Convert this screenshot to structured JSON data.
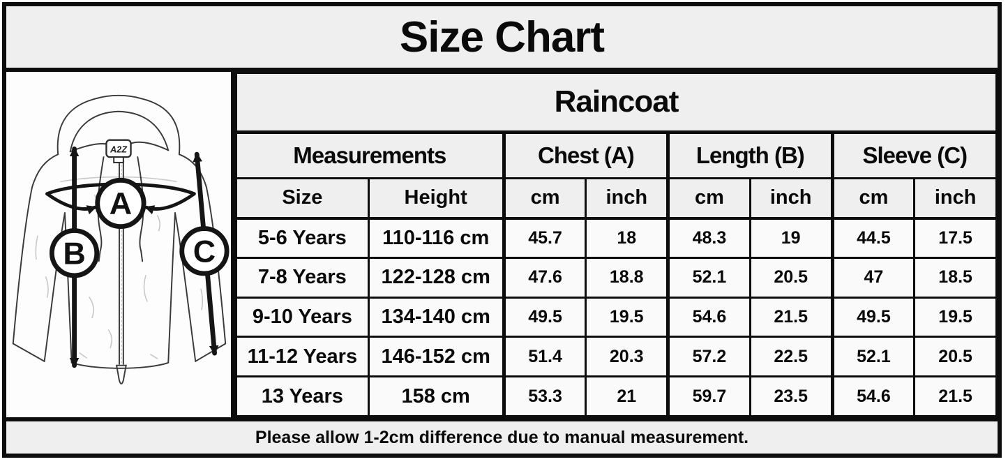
{
  "title": "Size Chart",
  "product": "Raincoat",
  "footer": "Please allow 1-2cm difference due to manual measurement.",
  "diagram": {
    "brand_tag": "A2Z",
    "markers": [
      {
        "id": "A",
        "measures": "chest"
      },
      {
        "id": "B",
        "measures": "length"
      },
      {
        "id": "C",
        "measures": "sleeve"
      }
    ]
  },
  "table": {
    "group_headers": [
      {
        "label": "Measurements",
        "span": 2
      },
      {
        "label": "Chest (A)",
        "span": 2
      },
      {
        "label": "Length (B)",
        "span": 2
      },
      {
        "label": "Sleeve (C)",
        "span": 2
      }
    ],
    "sub_headers": [
      "Size",
      "Height",
      "cm",
      "inch",
      "cm",
      "inch",
      "cm",
      "inch"
    ],
    "rows": [
      [
        "5-6 Years",
        "110-116 cm",
        "45.7",
        "18",
        "48.3",
        "19",
        "44.5",
        "17.5"
      ],
      [
        "7-8 Years",
        "122-128 cm",
        "47.6",
        "18.8",
        "52.1",
        "20.5",
        "47",
        "18.5"
      ],
      [
        "9-10 Years",
        "134-140 cm",
        "49.5",
        "19.5",
        "54.6",
        "21.5",
        "49.5",
        "19.5"
      ],
      [
        "11-12 Years",
        "146-152 cm",
        "51.4",
        "20.3",
        "57.2",
        "22.5",
        "52.1",
        "20.5"
      ],
      [
        "13 Years",
        "158 cm",
        "53.3",
        "21",
        "59.7",
        "23.5",
        "54.6",
        "21.5"
      ]
    ]
  },
  "colors": {
    "border": "#0d0d0d",
    "header_background": "#f0efef",
    "cell_background": "#fbfafa",
    "panel_background": "#fdfdfd",
    "text": "#0a0a0a"
  }
}
